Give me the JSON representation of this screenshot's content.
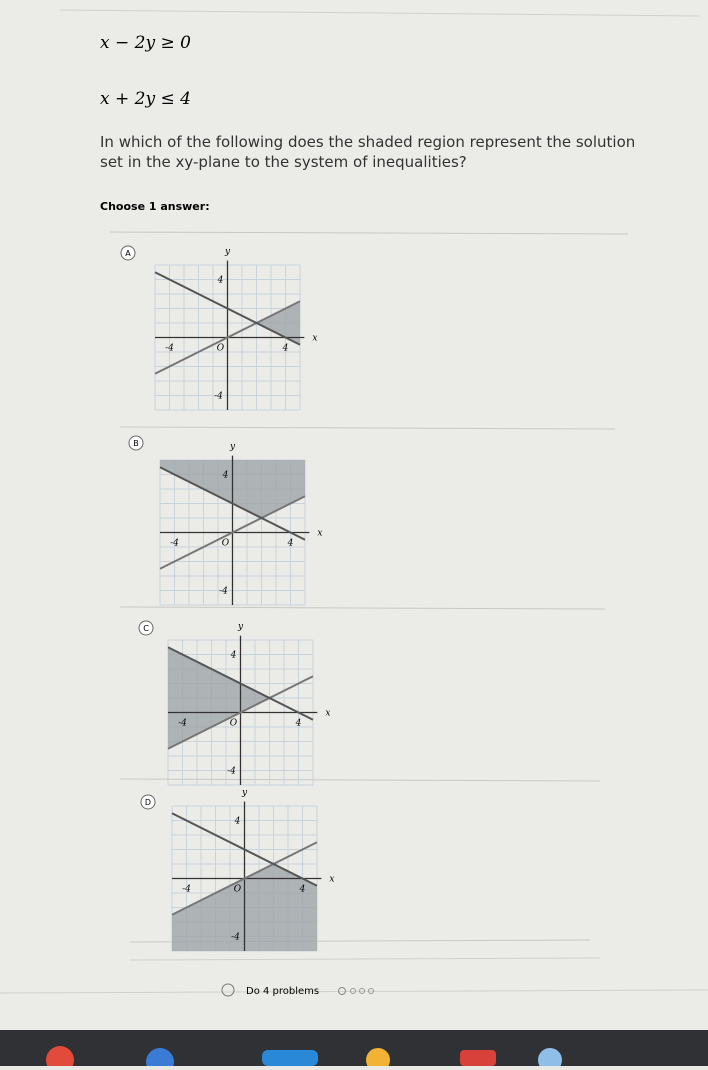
{
  "problem": {
    "inequalities": [
      "x − 2y ≥ 0",
      "x + 2y ≤ 4"
    ],
    "question": "In which of the following does the shaded region represent the solution set in the xy-plane to the system of inequalities?",
    "prompt": "Choose 1 answer:",
    "options": [
      {
        "letter": "A",
        "x": "x",
        "y": "y",
        "y_top": "4",
        "x_left": "-4",
        "origin": "O",
        "x_right": "4",
        "y_bottom": "-4"
      },
      {
        "letter": "B",
        "x": "x",
        "y": "y",
        "y_top": "4",
        "x_left": "-4",
        "origin": "O",
        "x_right": "4",
        "y_bottom": "-4"
      },
      {
        "letter": "C",
        "x": "x",
        "y": "y",
        "y_top": "4",
        "x_left": "-4",
        "origin": "O",
        "x_right": "4",
        "y_bottom": "-4"
      },
      {
        "letter": "D",
        "x": "x",
        "y": "y",
        "y_top": "4",
        "x_left": "-4",
        "origin": "O",
        "x_right": "4",
        "y_bottom": "-4"
      }
    ]
  },
  "footer": {
    "progress": "Do 4 problems"
  }
}
